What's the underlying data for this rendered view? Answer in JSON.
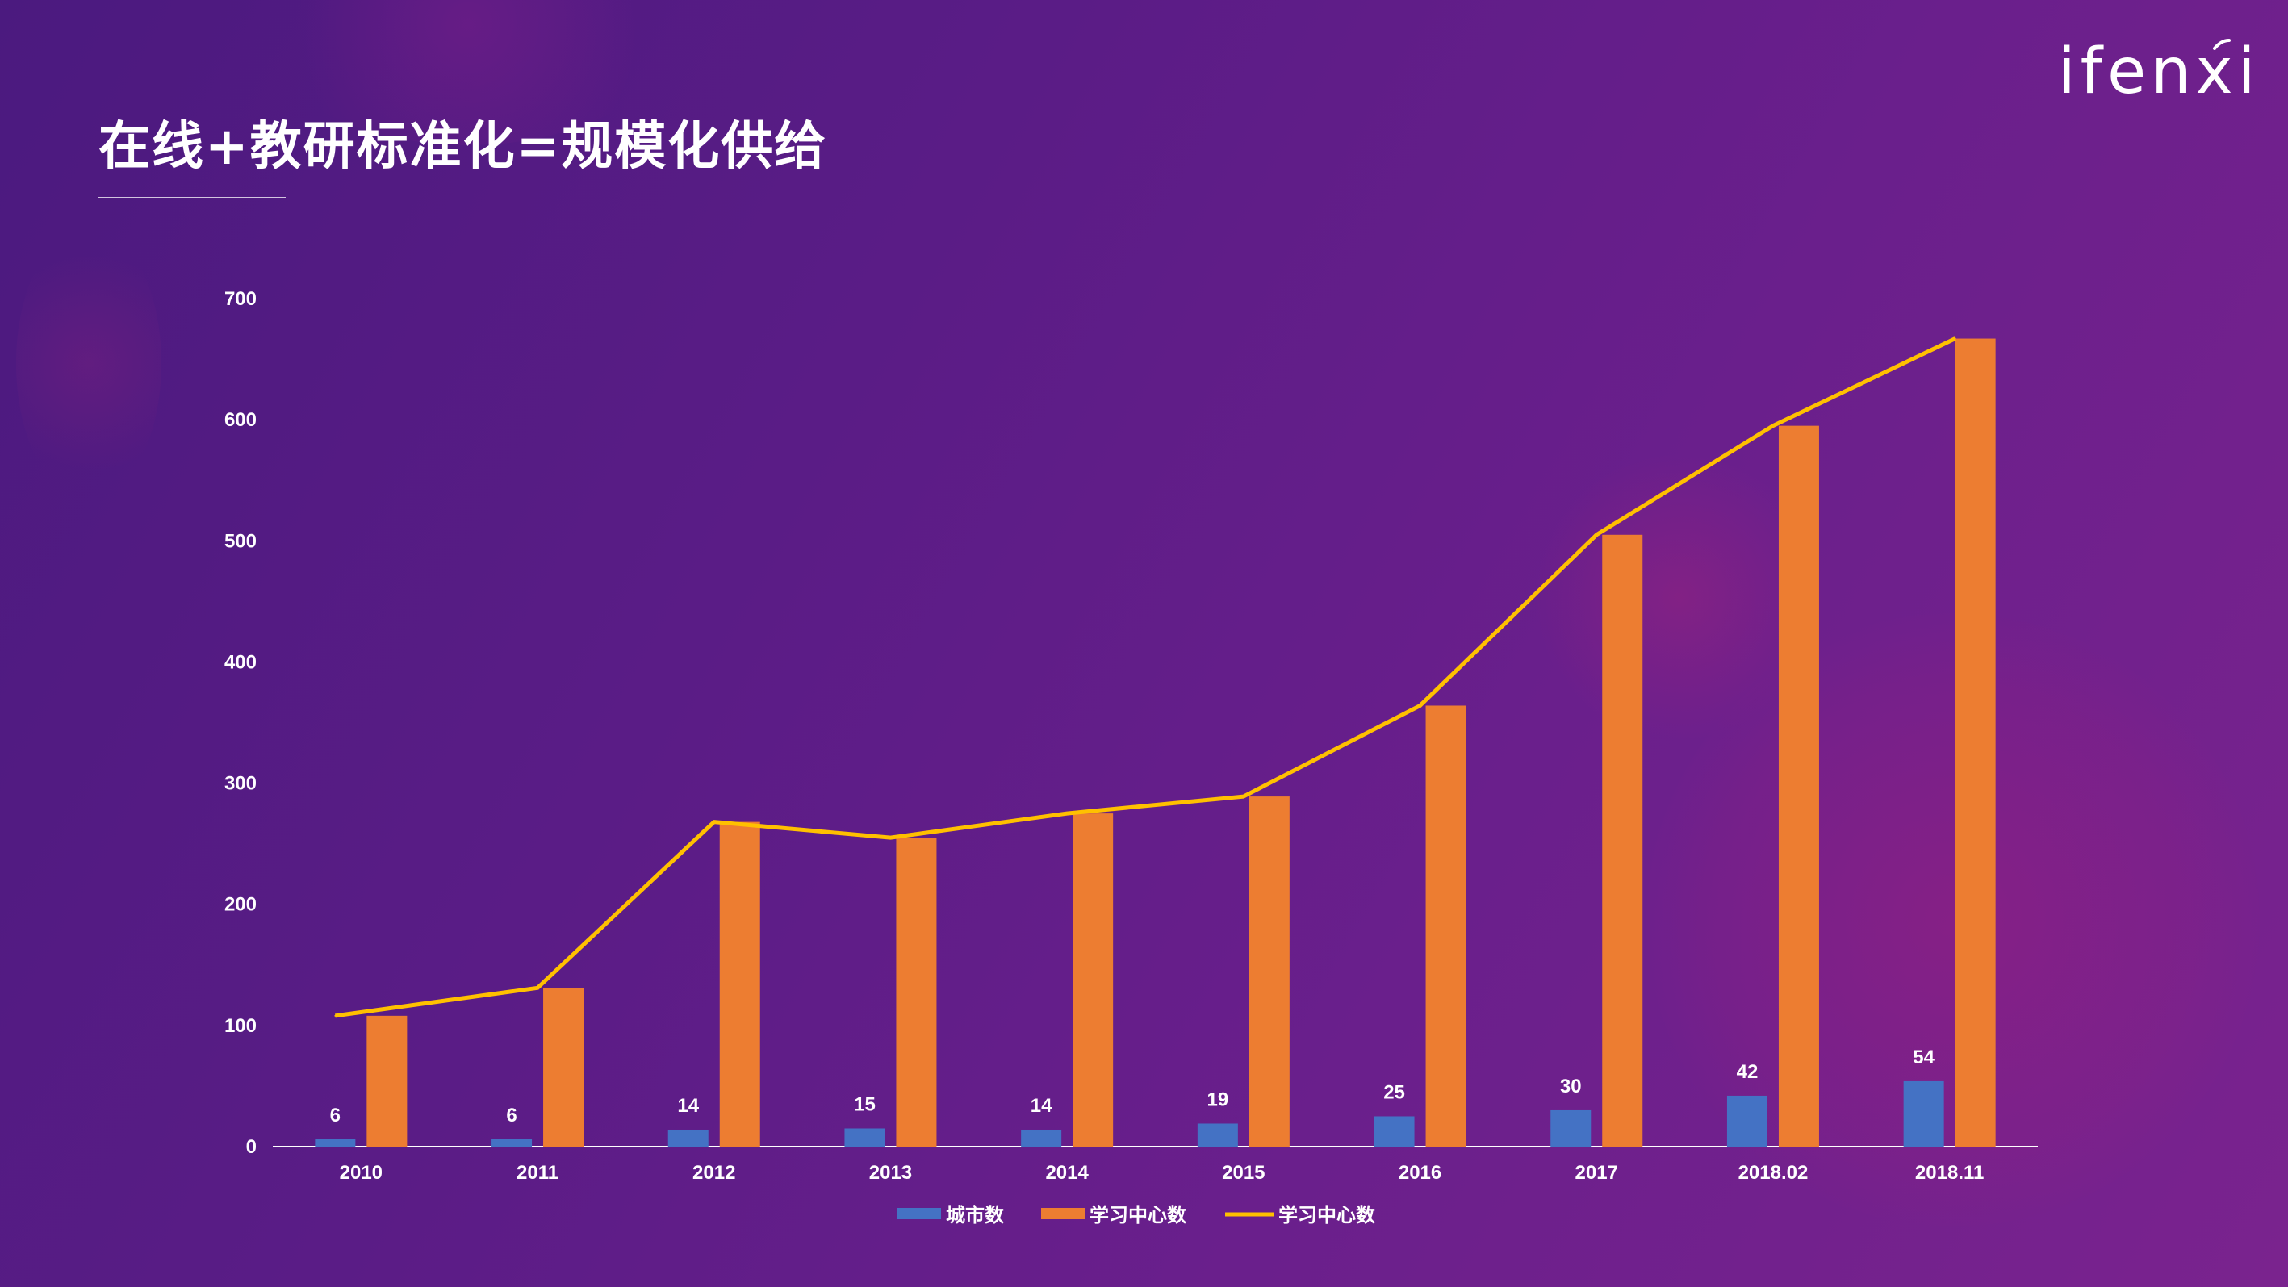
{
  "header": {
    "title": "在线+教研标准化=规模化供给",
    "logo_text": "ifenxi"
  },
  "colors": {
    "city_bar": "#4472c4",
    "center_bar": "#ed7d31",
    "center_line": "#ffc000",
    "axis": "#ffffff"
  },
  "chart_data": {
    "type": "bar",
    "categories": [
      "2010",
      "2011",
      "2012",
      "2013",
      "2014",
      "2015",
      "2016",
      "2017",
      "2018.02",
      "2018.11"
    ],
    "ylim": [
      0,
      700
    ],
    "yticks": [
      "0",
      "100",
      "200",
      "300",
      "400",
      "500",
      "600",
      "700"
    ],
    "grid": false,
    "legend_position": "bottom",
    "series": [
      {
        "name": "城市数",
        "kind": "bar",
        "values": [
          6,
          6,
          14,
          15,
          14,
          19,
          25,
          30,
          42,
          54
        ],
        "data_labels": [
          "6",
          "6",
          "14",
          "15",
          "14",
          "19",
          "25",
          "30",
          "42",
          "54"
        ]
      },
      {
        "name": "学习中心数",
        "kind": "bar",
        "values": [
          108,
          131,
          268,
          255,
          275,
          289,
          364,
          505,
          595,
          667
        ]
      },
      {
        "name": "学习中心数",
        "kind": "line",
        "values": [
          108,
          131,
          268,
          255,
          275,
          289,
          364,
          505,
          595,
          667
        ]
      }
    ]
  }
}
